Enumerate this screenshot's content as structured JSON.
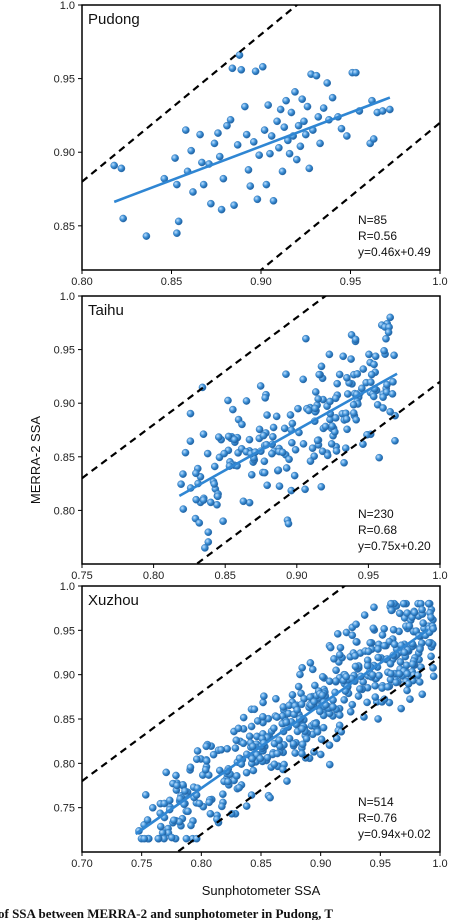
{
  "figure": {
    "ylabel": "MERRA-2 SSA",
    "xlabel": "Sunphotometer SSA",
    "caption_fragment": "of SSA between MERRA-2 and sunphotometer in Pudong, T"
  },
  "colors": {
    "points": "#3b8fd6",
    "fit": "#2f86d3",
    "bounds": "#000000",
    "frame": "#000000"
  },
  "chart_data": [
    {
      "type": "scatter",
      "label": "Pudong",
      "xlim": [
        0.8,
        1.0
      ],
      "ylim": [
        0.82,
        1.0
      ],
      "xticks": [
        "0.80",
        "0.85",
        "0.90",
        "0.95",
        "1.0"
      ],
      "yticks": [
        "1.0",
        "0.95",
        "0.90",
        "0.85"
      ],
      "ytick_values": [
        1.0,
        0.95,
        0.9,
        0.85
      ],
      "xtick_values": [
        0.8,
        0.85,
        0.9,
        0.95,
        1.0
      ],
      "stats": [
        "N=85",
        "R=0.56",
        "y=0.46x+0.49"
      ],
      "fit": {
        "slope": 0.46,
        "intercept": 0.49,
        "x_range": [
          0.818,
          0.972
        ]
      },
      "bound_lines": [
        {
          "slope": 1,
          "intercept": 0.08
        },
        {
          "slope": 1,
          "intercept": -0.08
        }
      ],
      "grid": false,
      "points": [
        [
          0.818,
          0.891
        ],
        [
          0.822,
          0.889
        ],
        [
          0.823,
          0.855
        ],
        [
          0.836,
          0.843
        ],
        [
          0.846,
          0.882
        ],
        [
          0.852,
          0.896
        ],
        [
          0.853,
          0.878
        ],
        [
          0.853,
          0.845
        ],
        [
          0.854,
          0.853
        ],
        [
          0.858,
          0.915
        ],
        [
          0.859,
          0.887
        ],
        [
          0.861,
          0.901
        ],
        [
          0.862,
          0.873
        ],
        [
          0.866,
          0.912
        ],
        [
          0.867,
          0.893
        ],
        [
          0.868,
          0.878
        ],
        [
          0.871,
          0.892
        ],
        [
          0.872,
          0.865
        ],
        [
          0.874,
          0.906
        ],
        [
          0.876,
          0.913
        ],
        [
          0.877,
          0.897
        ],
        [
          0.878,
          0.861
        ],
        [
          0.879,
          0.882
        ],
        [
          0.881,
          0.918
        ],
        [
          0.883,
          0.922
        ],
        [
          0.884,
          0.957
        ],
        [
          0.885,
          0.864
        ],
        [
          0.887,
          0.905
        ],
        [
          0.888,
          0.966
        ],
        [
          0.889,
          0.956
        ],
        [
          0.891,
          0.931
        ],
        [
          0.892,
          0.912
        ],
        [
          0.893,
          0.888
        ],
        [
          0.894,
          0.877
        ],
        [
          0.896,
          0.907
        ],
        [
          0.897,
          0.955
        ],
        [
          0.898,
          0.868
        ],
        [
          0.899,
          0.898
        ],
        [
          0.901,
          0.958
        ],
        [
          0.902,
          0.915
        ],
        [
          0.903,
          0.878
        ],
        [
          0.904,
          0.932
        ],
        [
          0.905,
          0.899
        ],
        [
          0.906,
          0.911
        ],
        [
          0.907,
          0.867
        ],
        [
          0.909,
          0.921
        ],
        [
          0.91,
          0.903
        ],
        [
          0.911,
          0.929
        ],
        [
          0.912,
          0.887
        ],
        [
          0.913,
          0.917
        ],
        [
          0.914,
          0.935
        ],
        [
          0.915,
          0.908
        ],
        [
          0.916,
          0.899
        ],
        [
          0.917,
          0.927
        ],
        [
          0.918,
          0.911
        ],
        [
          0.919,
          0.941
        ],
        [
          0.92,
          0.895
        ],
        [
          0.921,
          0.918
        ],
        [
          0.922,
          0.904
        ],
        [
          0.923,
          0.936
        ],
        [
          0.924,
          0.921
        ],
        [
          0.925,
          0.912
        ],
        [
          0.926,
          0.931
        ],
        [
          0.927,
          0.889
        ],
        [
          0.928,
          0.953
        ],
        [
          0.929,
          0.915
        ],
        [
          0.931,
          0.952
        ],
        [
          0.932,
          0.924
        ],
        [
          0.933,
          0.906
        ],
        [
          0.935,
          0.93
        ],
        [
          0.937,
          0.947
        ],
        [
          0.938,
          0.922
        ],
        [
          0.94,
          0.937
        ],
        [
          0.943,
          0.924
        ],
        [
          0.945,
          0.916
        ],
        [
          0.948,
          0.911
        ],
        [
          0.951,
          0.954
        ],
        [
          0.953,
          0.954
        ],
        [
          0.955,
          0.928
        ],
        [
          0.961,
          0.906
        ],
        [
          0.962,
          0.935
        ],
        [
          0.963,
          0.909
        ],
        [
          0.965,
          0.927
        ],
        [
          0.968,
          0.928
        ],
        [
          0.972,
          0.929
        ]
      ]
    },
    {
      "type": "scatter",
      "label": "Taihu",
      "xlim": [
        0.75,
        1.0
      ],
      "ylim": [
        0.75,
        1.0
      ],
      "xticks": [
        "0.75",
        "0.80",
        "0.85",
        "0.90",
        "0.95",
        "1.0"
      ],
      "yticks": [
        "1.0",
        "0.95",
        "0.90",
        "0.85",
        "0.80"
      ],
      "ytick_values": [
        1.0,
        0.95,
        0.9,
        0.85,
        0.8
      ],
      "xtick_values": [
        0.75,
        0.8,
        0.85,
        0.9,
        0.95,
        1.0
      ],
      "stats": [
        "N=230",
        "R=0.68",
        "y=0.75x+0.20"
      ],
      "fit": {
        "slope": 0.75,
        "intercept": 0.2,
        "x_range": [
          0.818,
          0.97
        ]
      },
      "bound_lines": [
        {
          "slope": 1,
          "intercept": 0.08
        },
        {
          "slope": 1,
          "intercept": -0.08
        }
      ],
      "grid": false,
      "n_points": 230,
      "seed": 17,
      "scatter_sd": 0.03,
      "x_range": [
        0.815,
        0.97
      ]
    },
    {
      "type": "scatter",
      "label": "Xuzhou",
      "xlim": [
        0.7,
        1.0
      ],
      "ylim": [
        0.7,
        1.0
      ],
      "xticks": [
        "0.70",
        "0.75",
        "0.80",
        "0.85",
        "0.90",
        "0.95",
        "1.0"
      ],
      "yticks": [
        "1.0",
        "0.95",
        "0.90",
        "0.85",
        "0.80",
        "0.75"
      ],
      "ytick_values": [
        1.0,
        0.95,
        0.9,
        0.85,
        0.8,
        0.75
      ],
      "xtick_values": [
        0.7,
        0.75,
        0.8,
        0.85,
        0.9,
        0.95,
        1.0
      ],
      "stats": [
        "N=514",
        "R=0.76",
        "y=0.94x+0.02"
      ],
      "fit": {
        "slope": 0.94,
        "intercept": 0.02,
        "x_range": [
          0.745,
          0.99
        ]
      },
      "bound_lines": [
        {
          "slope": 1,
          "intercept": 0.08
        },
        {
          "slope": 1,
          "intercept": -0.08
        }
      ],
      "grid": false,
      "n_points": 514,
      "seed": 5,
      "scatter_sd": 0.028,
      "x_range": [
        0.745,
        0.995
      ]
    }
  ]
}
